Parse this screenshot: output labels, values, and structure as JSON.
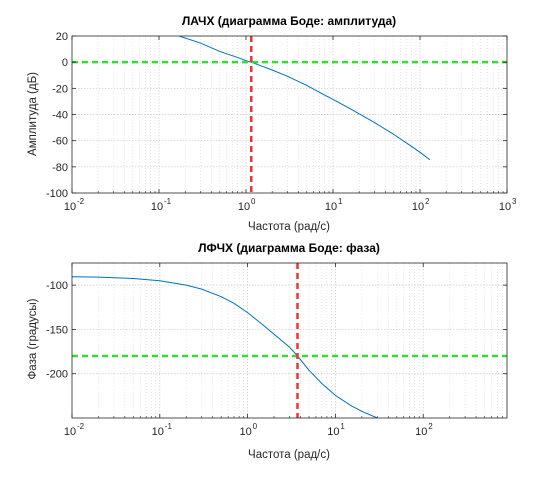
{
  "chart_data": [
    {
      "type": "line",
      "title": "ЛАЧХ (диаграмма Боде: амплитуда)",
      "xlabel": "Частота (рад/с)",
      "ylabel": "Амплитуда (дБ)",
      "xscale": "log",
      "xlim": [
        0.01,
        1000
      ],
      "ylim": [
        -100,
        20
      ],
      "yticks": [
        20,
        0,
        -20,
        -40,
        -60,
        -80,
        -100
      ],
      "xtick_exponents": [
        -2,
        -1,
        0,
        1,
        2,
        3
      ],
      "xtick_base": "10",
      "grid": true,
      "series": [
        {
          "color": "#0072BD",
          "x": [
            0.17,
            0.3,
            0.5,
            0.8,
            1.0,
            1.15,
            1.5,
            2,
            3,
            5,
            8,
            10,
            15,
            20,
            30,
            50,
            80,
            100,
            130
          ],
          "y": [
            20,
            14.6,
            8.2,
            3.6,
            1.2,
            0,
            -2.9,
            -6.0,
            -10.8,
            -17.8,
            -25.1,
            -28.5,
            -34.8,
            -39.5,
            -46.2,
            -55.2,
            -64.4,
            -68.9,
            -74.6
          ]
        }
      ],
      "reference_lines": [
        {
          "orientation": "horizontal",
          "value": 0,
          "color": "#33DD33",
          "style": "dashed"
        },
        {
          "orientation": "vertical",
          "value": 1.15,
          "color": "#EE3333",
          "style": "dashed"
        }
      ]
    },
    {
      "type": "line",
      "title": "ЛФЧХ (диаграмма Боде: фаза)",
      "xlabel": "Частота (рад/с)",
      "ylabel": "Фаза (градусы)",
      "xscale": "log",
      "xlim": [
        0.01,
        900
      ],
      "ylim": [
        -250,
        -75
      ],
      "yticks": [
        -100,
        -150,
        -200
      ],
      "xtick_exponents": [
        -2,
        -1,
        0,
        1,
        2
      ],
      "xtick_base": "10",
      "grid": true,
      "series": [
        {
          "color": "#0072BD",
          "x": [
            0.01,
            0.02,
            0.05,
            0.1,
            0.2,
            0.3,
            0.5,
            0.7,
            1,
            1.5,
            2,
            3,
            3.7,
            5,
            7,
            10,
            15,
            20,
            30
          ],
          "y": [
            -90.5,
            -91,
            -92.5,
            -95,
            -100,
            -104.5,
            -113,
            -120.5,
            -131,
            -145,
            -155.5,
            -170,
            -180,
            -196,
            -211,
            -224.5,
            -236,
            -242.5,
            -250
          ]
        }
      ],
      "reference_lines": [
        {
          "orientation": "horizontal",
          "value": -180,
          "color": "#33DD33",
          "style": "dashed"
        },
        {
          "orientation": "vertical",
          "value": 3.7,
          "color": "#EE3333",
          "style": "dashed"
        }
      ]
    }
  ]
}
